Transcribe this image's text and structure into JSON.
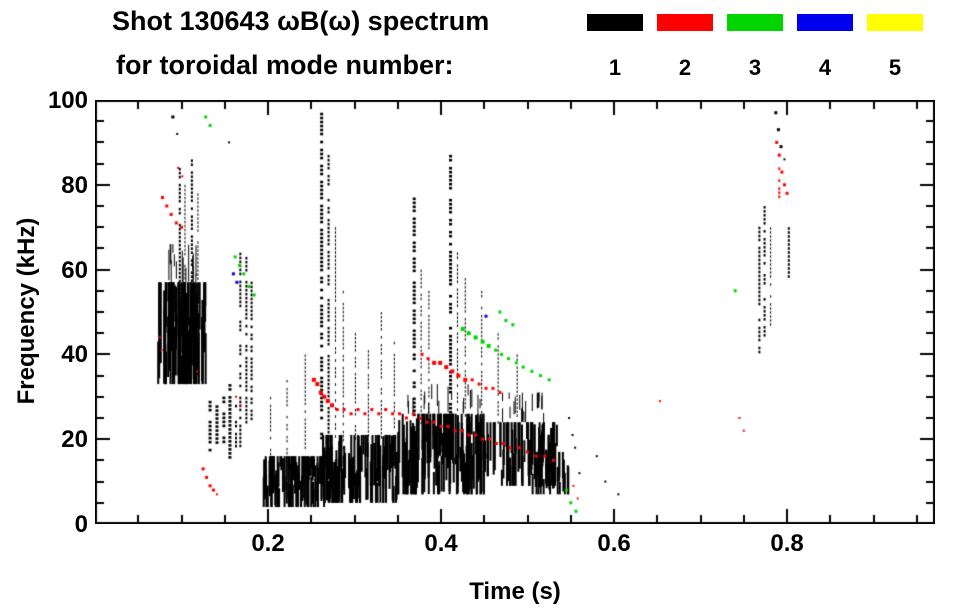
{
  "page": {
    "background": "#ffffff"
  },
  "chart_data": {
    "type": "scatter",
    "title": "Shot 130643 ωB(ω) spectrum",
    "subtitle": "for toroidal mode number:",
    "xlabel": "Time (s)",
    "ylabel": "Frequency (kHz)",
    "xlim": [
      0.0,
      0.971
    ],
    "ylim": [
      0,
      100
    ],
    "grid": false,
    "axis_color": "#000000",
    "legend_position": "top-right",
    "xticks": {
      "major": [
        0.2,
        0.4,
        0.6,
        0.8
      ],
      "labels": [
        "0.2",
        "0.4",
        "0.6",
        "0.8"
      ],
      "minor_step": 0.05
    },
    "yticks": {
      "major": [
        0,
        20,
        40,
        60,
        80,
        100
      ],
      "labels": [
        "0",
        "20",
        "40",
        "60",
        "80",
        "100"
      ],
      "minor_step": 5
    },
    "legend": [
      {
        "label": "1",
        "color": "#000000"
      },
      {
        "label": "2",
        "color": "#ff0000"
      },
      {
        "label": "3",
        "color": "#00d500"
      },
      {
        "label": "4",
        "color": "#0000ee"
      },
      {
        "label": "5",
        "color": "#ffff00"
      }
    ],
    "series": [
      {
        "name": "mode n=1",
        "color": "#000000",
        "blobs": [
          [
            0.073,
            0.128,
            33,
            57,
            110,
            2
          ],
          [
            0.08,
            0.124,
            57,
            66,
            16,
            1
          ],
          [
            0.195,
            0.265,
            4,
            16,
            90,
            2
          ],
          [
            0.262,
            0.35,
            5,
            21,
            100,
            2
          ],
          [
            0.35,
            0.45,
            7,
            26,
            120,
            2
          ],
          [
            0.45,
            0.535,
            9,
            24,
            80,
            2
          ],
          [
            0.5,
            0.548,
            7,
            17,
            30,
            2
          ],
          [
            0.47,
            0.532,
            24,
            31,
            22,
            1
          ],
          [
            0.36,
            0.45,
            26,
            33,
            18,
            1
          ]
        ],
        "strokes": [
          [
            0.098,
            40,
            84,
            2
          ],
          [
            0.104,
            58,
            80,
            1
          ],
          [
            0.112,
            42,
            86,
            2
          ],
          [
            0.119,
            40,
            78,
            1
          ],
          [
            0.133,
            17,
            30,
            3
          ],
          [
            0.141,
            18,
            28,
            3
          ],
          [
            0.149,
            17,
            31,
            3
          ],
          [
            0.156,
            16,
            33,
            3
          ],
          [
            0.163,
            18,
            30,
            2
          ],
          [
            0.168,
            18,
            64,
            2
          ],
          [
            0.175,
            22,
            63,
            2
          ],
          [
            0.181,
            25,
            60,
            2
          ],
          [
            0.203,
            16,
            30,
            1
          ],
          [
            0.222,
            14,
            34,
            1
          ],
          [
            0.243,
            15,
            40,
            1
          ],
          [
            0.262,
            20,
            97,
            3
          ],
          [
            0.27,
            18,
            88,
            2
          ],
          [
            0.278,
            20,
            70,
            1
          ],
          [
            0.287,
            18,
            55,
            1
          ],
          [
            0.301,
            19,
            46,
            1
          ],
          [
            0.316,
            20,
            41,
            1
          ],
          [
            0.331,
            20,
            50,
            1
          ],
          [
            0.346,
            22,
            43,
            1
          ],
          [
            0.369,
            25,
            77,
            3
          ],
          [
            0.377,
            24,
            60,
            1
          ],
          [
            0.386,
            24,
            55,
            1
          ],
          [
            0.411,
            25,
            88,
            3
          ],
          [
            0.419,
            24,
            65,
            1
          ],
          [
            0.428,
            25,
            58,
            1
          ],
          [
            0.447,
            24,
            55,
            1
          ],
          [
            0.466,
            24,
            45,
            1
          ],
          [
            0.488,
            25,
            40,
            1
          ],
          [
            0.768,
            40,
            72,
            2
          ],
          [
            0.774,
            44,
            75,
            2
          ],
          [
            0.781,
            46,
            70,
            1
          ],
          [
            0.802,
            58,
            70,
            2
          ]
        ],
        "points": [
          [
            0.09,
            96,
            3
          ],
          [
            0.095,
            92,
            2
          ],
          [
            0.155,
            90,
            2
          ],
          [
            0.787,
            97,
            3
          ],
          [
            0.79,
            93,
            3
          ],
          [
            0.793,
            89,
            3
          ],
          [
            0.797,
            86,
            2
          ],
          [
            0.555,
            18,
            2
          ],
          [
            0.56,
            12,
            2
          ],
          [
            0.58,
            16,
            2
          ],
          [
            0.59,
            10,
            2
          ],
          [
            0.605,
            7,
            2
          ],
          [
            0.548,
            25,
            2
          ],
          [
            0.552,
            21,
            2
          ]
        ]
      },
      {
        "name": "mode n=2",
        "color": "#ff0000",
        "blobs": [],
        "strokes": [
          [
            0.791,
            77,
            86,
            2
          ]
        ],
        "points": [
          [
            0.078,
            77,
            3
          ],
          [
            0.083,
            75,
            3
          ],
          [
            0.088,
            73,
            3
          ],
          [
            0.094,
            71,
            3
          ],
          [
            0.1,
            70,
            3
          ],
          [
            0.096,
            84,
            2
          ],
          [
            0.101,
            82,
            2
          ],
          [
            0.075,
            44,
            2
          ],
          [
            0.077,
            41,
            2
          ],
          [
            0.118,
            36,
            2
          ],
          [
            0.125,
            13,
            3
          ],
          [
            0.129,
            11,
            3
          ],
          [
            0.133,
            9,
            3
          ],
          [
            0.137,
            8,
            3
          ],
          [
            0.141,
            7,
            2
          ],
          [
            0.163,
            30,
            2
          ],
          [
            0.168,
            28,
            2
          ],
          [
            0.253,
            34,
            4
          ],
          [
            0.257,
            33,
            4
          ],
          [
            0.261,
            31,
            4
          ],
          [
            0.265,
            30,
            4
          ],
          [
            0.269,
            29,
            4
          ],
          [
            0.274,
            28,
            4
          ],
          [
            0.28,
            27,
            3
          ],
          [
            0.288,
            27,
            3
          ],
          [
            0.296,
            26,
            3
          ],
          [
            0.304,
            27,
            3
          ],
          [
            0.312,
            26,
            3
          ],
          [
            0.32,
            27,
            3
          ],
          [
            0.328,
            26,
            3
          ],
          [
            0.336,
            27,
            3
          ],
          [
            0.344,
            26,
            3
          ],
          [
            0.352,
            26,
            3
          ],
          [
            0.36,
            25,
            3
          ],
          [
            0.368,
            26,
            3
          ],
          [
            0.376,
            25,
            3
          ],
          [
            0.384,
            24,
            3
          ],
          [
            0.392,
            24,
            3
          ],
          [
            0.4,
            23,
            3
          ],
          [
            0.408,
            23,
            3
          ],
          [
            0.416,
            22,
            3
          ],
          [
            0.424,
            22,
            3
          ],
          [
            0.432,
            21,
            3
          ],
          [
            0.44,
            21,
            3
          ],
          [
            0.448,
            20,
            3
          ],
          [
            0.456,
            20,
            3
          ],
          [
            0.464,
            19,
            3
          ],
          [
            0.472,
            19,
            3
          ],
          [
            0.48,
            18,
            3
          ],
          [
            0.49,
            18,
            3
          ],
          [
            0.5,
            17,
            3
          ],
          [
            0.51,
            16,
            3
          ],
          [
            0.52,
            16,
            3
          ],
          [
            0.53,
            15,
            3
          ],
          [
            0.378,
            40,
            3
          ],
          [
            0.385,
            39,
            3
          ],
          [
            0.392,
            38,
            4
          ],
          [
            0.399,
            38,
            4
          ],
          [
            0.406,
            37,
            4
          ],
          [
            0.413,
            36,
            4
          ],
          [
            0.42,
            35,
            4
          ],
          [
            0.428,
            34,
            4
          ],
          [
            0.436,
            34,
            3
          ],
          [
            0.444,
            33,
            3
          ],
          [
            0.452,
            32,
            3
          ],
          [
            0.46,
            32,
            3
          ],
          [
            0.468,
            31,
            3
          ],
          [
            0.788,
            90,
            3
          ],
          [
            0.791,
            87,
            3
          ],
          [
            0.794,
            83,
            3
          ],
          [
            0.797,
            80,
            3
          ],
          [
            0.8,
            78,
            3
          ],
          [
            0.745,
            25,
            2
          ],
          [
            0.75,
            22,
            2
          ],
          [
            0.653,
            29,
            2
          ],
          [
            0.553,
            9,
            2
          ],
          [
            0.558,
            6,
            2
          ]
        ]
      },
      {
        "name": "mode n=3",
        "color": "#00d500",
        "blobs": [],
        "strokes": [],
        "points": [
          [
            0.128,
            96,
            3
          ],
          [
            0.133,
            94,
            3
          ],
          [
            0.162,
            63,
            3
          ],
          [
            0.167,
            61,
            3
          ],
          [
            0.172,
            59,
            3
          ],
          [
            0.178,
            56,
            3
          ],
          [
            0.184,
            54,
            3
          ],
          [
            0.425,
            46,
            4
          ],
          [
            0.432,
            45,
            4
          ],
          [
            0.44,
            44,
            4
          ],
          [
            0.448,
            43,
            4
          ],
          [
            0.455,
            42,
            4
          ],
          [
            0.463,
            41,
            3
          ],
          [
            0.47,
            40,
            3
          ],
          [
            0.478,
            39,
            3
          ],
          [
            0.487,
            38,
            3
          ],
          [
            0.495,
            37,
            3
          ],
          [
            0.505,
            36,
            3
          ],
          [
            0.515,
            35,
            3
          ],
          [
            0.525,
            34,
            3
          ],
          [
            0.468,
            50,
            3
          ],
          [
            0.475,
            48,
            3
          ],
          [
            0.483,
            47,
            3
          ],
          [
            0.545,
            8,
            3
          ],
          [
            0.55,
            5,
            3
          ],
          [
            0.556,
            3,
            3
          ],
          [
            0.74,
            55,
            3
          ]
        ]
      },
      {
        "name": "mode n=4",
        "color": "#0000ee",
        "blobs": [],
        "strokes": [],
        "points": [
          [
            0.16,
            59,
            3
          ],
          [
            0.164,
            57,
            3
          ],
          [
            0.452,
            49,
            3
          ]
        ]
      },
      {
        "name": "mode n=5",
        "color": "#ffff00",
        "blobs": [],
        "strokes": [],
        "points": []
      }
    ]
  }
}
